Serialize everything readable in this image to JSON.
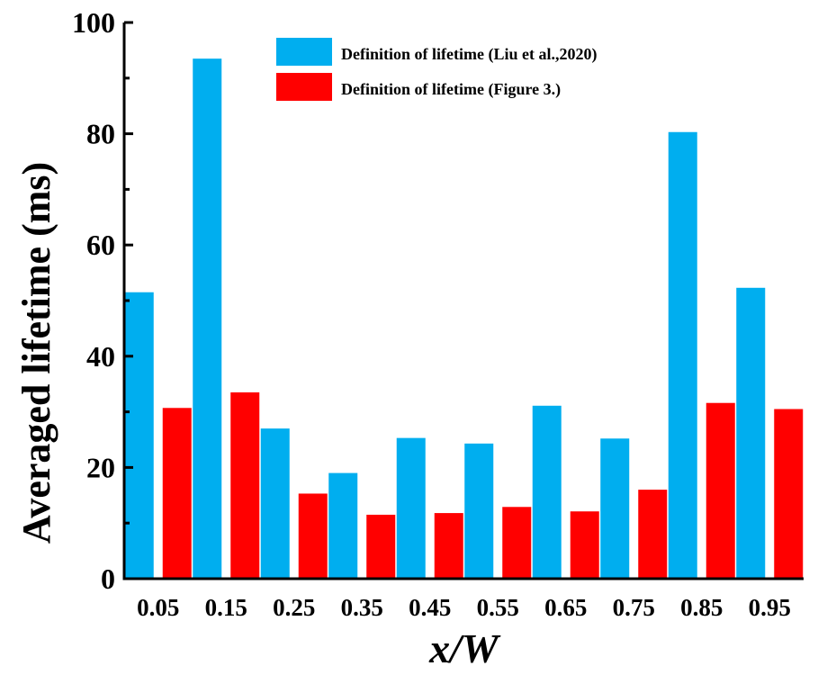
{
  "chart_data": {
    "type": "bar",
    "title": "",
    "xlabel": "x/W",
    "ylabel": "Averaged lifetime (ms)",
    "categories": [
      "0.05",
      "0.15",
      "0.25",
      "0.35",
      "0.45",
      "0.55",
      "0.65",
      "0.75",
      "0.85",
      "0.95"
    ],
    "ylim": [
      0,
      100
    ],
    "yticks": [
      "0",
      "20",
      "40",
      "60",
      "80",
      "100"
    ],
    "grid": false,
    "legend_position": "top-center",
    "series": [
      {
        "name": "Definition of lifetime (Liu et al.,2020)",
        "color": "#00AEEF",
        "values": [
          51.5,
          93.5,
          27,
          19,
          25.3,
          24.3,
          31.1,
          25.2,
          80.3,
          52.3
        ]
      },
      {
        "name": "Definition of lifetime (Figure 3.)",
        "color": "#FF0000",
        "values": [
          30.7,
          33.5,
          15.3,
          11.5,
          11.8,
          12.9,
          12.1,
          16,
          31.6,
          30.5
        ]
      }
    ]
  }
}
